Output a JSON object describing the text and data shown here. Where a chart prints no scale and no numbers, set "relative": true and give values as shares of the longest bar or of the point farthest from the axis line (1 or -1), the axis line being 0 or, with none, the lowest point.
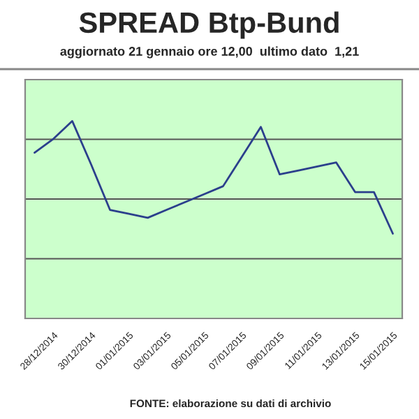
{
  "chart_data": {
    "type": "line",
    "title": "SPREAD Btp-Bund",
    "subtitle": "aggiornato 21 gennaio ore 12,00  ultimo dato  1,21",
    "categories": [
      null,
      "28/12/2014",
      null,
      "30/12/2014",
      null,
      "01/01/2015",
      null,
      "03/01/2015",
      null,
      "05/01/2015",
      null,
      "07/01/2015",
      null,
      "09/01/2015",
      null,
      "11/01/2015",
      null,
      "13/01/2015",
      null,
      "15/01/2015"
    ],
    "series": [
      {
        "color": "#2b3f8c",
        "values": [
          0.84,
          0.91,
          1.0,
          0.78,
          0.55,
          0.53,
          0.51,
          0.55,
          0.59,
          0.63,
          0.67,
          0.82,
          0.97,
          0.73,
          0.75,
          0.77,
          0.79,
          0.64,
          0.64,
          0.43
        ]
      }
    ],
    "relative": true,
    "grid": "y",
    "legend": false,
    "marker": "none",
    "line_style": "solid",
    "annotations": [
      "FONTE: elaborazione su dati di archivio"
    ]
  }
}
